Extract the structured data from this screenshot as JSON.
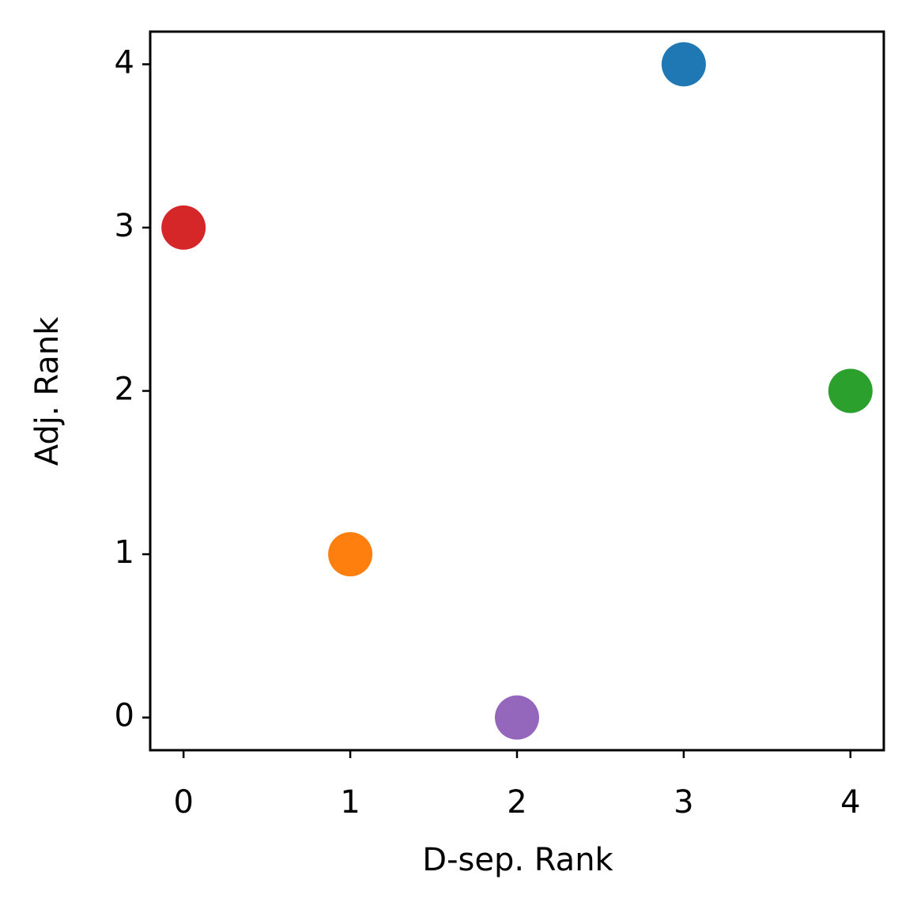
{
  "chart_data": {
    "type": "scatter",
    "xlabel": "D-sep. Rank",
    "ylabel": "Adj. Rank",
    "x": [
      3,
      0,
      4,
      1,
      2
    ],
    "y": [
      4,
      3,
      2,
      1,
      0
    ],
    "colors": [
      "#1f77b4",
      "#d62728",
      "#2ca02c",
      "#ff7f0e",
      "#9467bd"
    ],
    "xlim": [
      -0.2,
      4.2
    ],
    "ylim": [
      -0.2,
      4.2
    ],
    "xticks": [
      0,
      1,
      2,
      3,
      4
    ],
    "yticks": [
      0,
      1,
      2,
      3,
      4
    ],
    "grid": false
  }
}
